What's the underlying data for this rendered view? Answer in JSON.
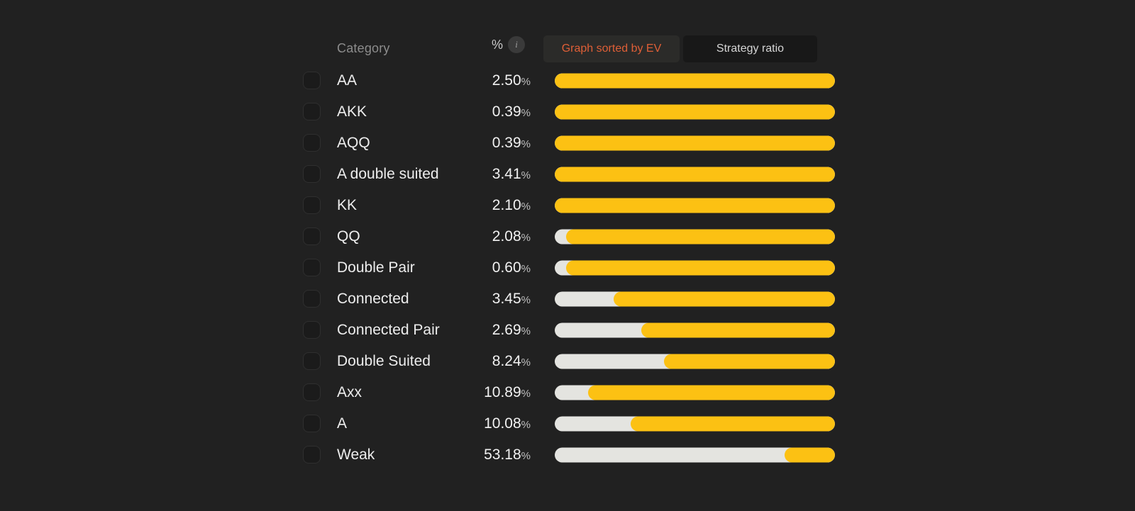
{
  "header": {
    "category_label": "Category",
    "percent_label": "%",
    "info_icon_glyph": "i",
    "sort_button": "Graph sorted by EV",
    "ratio_button": "Strategy ratio"
  },
  "percent_suffix": "%",
  "colors": {
    "background": "#212121",
    "bar_yellow": "#fcc113",
    "bar_gray": "#e4e4e0",
    "accent_orange": "#df5f37",
    "sort_button_bg": "#2b2b29",
    "ratio_button_bg": "#181818",
    "label_text": "#ededed",
    "muted_header_text": "#8c8c8c"
  },
  "rows": [
    {
      "category": "AA",
      "percent": "2.50",
      "gray_pct": 0
    },
    {
      "category": "AKK",
      "percent": "0.39",
      "gray_pct": 0
    },
    {
      "category": "AQQ",
      "percent": "0.39",
      "gray_pct": 0
    },
    {
      "category": "A double suited",
      "percent": "3.41",
      "gray_pct": 0
    },
    {
      "category": "KK",
      "percent": "2.10",
      "gray_pct": 0
    },
    {
      "category": "QQ",
      "percent": "2.08",
      "gray_pct": 4
    },
    {
      "category": "Double Pair",
      "percent": "0.60",
      "gray_pct": 4
    },
    {
      "category": "Connected",
      "percent": "3.45",
      "gray_pct": 21
    },
    {
      "category": "Connected Pair",
      "percent": "2.69",
      "gray_pct": 31
    },
    {
      "category": "Double Suited",
      "percent": "8.24",
      "gray_pct": 39
    },
    {
      "category": "Axx",
      "percent": "10.89",
      "gray_pct": 12
    },
    {
      "category": "A",
      "percent": "10.08",
      "gray_pct": 27
    },
    {
      "category": "Weak",
      "percent": "53.18",
      "gray_pct": 82
    }
  ],
  "chart_data": {
    "type": "bar",
    "title": "Graph sorted by EV",
    "categories": [
      "AA",
      "AKK",
      "AQQ",
      "A double suited",
      "KK",
      "QQ",
      "Double Pair",
      "Connected",
      "Connected Pair",
      "Double Suited",
      "Axx",
      "A",
      "Weak"
    ],
    "series": [
      {
        "name": "category_weight_percent",
        "values": [
          2.5,
          0.39,
          0.39,
          3.41,
          2.1,
          2.08,
          0.6,
          3.45,
          2.69,
          8.24,
          10.89,
          10.08,
          53.18
        ]
      },
      {
        "name": "strategy_ratio_yellow_pct",
        "values": [
          100,
          100,
          100,
          100,
          100,
          96,
          96,
          79,
          69,
          61,
          88,
          73,
          18
        ]
      },
      {
        "name": "strategy_ratio_gray_pct",
        "values": [
          0,
          0,
          0,
          0,
          0,
          4,
          4,
          21,
          31,
          39,
          12,
          27,
          82
        ]
      }
    ],
    "xlabel": "Strategy ratio",
    "ylabel": "Category",
    "legend_position": "top",
    "grid": false
  }
}
